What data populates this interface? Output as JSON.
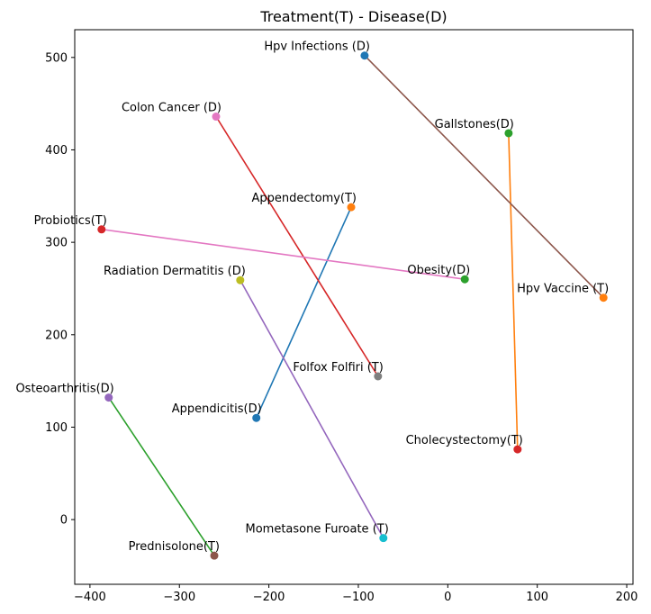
{
  "chart_data": {
    "type": "scatter",
    "title": "Treatment(T) - Disease(D)",
    "xlabel": "",
    "ylabel": "",
    "xlim": [
      -417,
      207
    ],
    "ylim": [
      -70,
      530
    ],
    "xticks": [
      -400,
      -300,
      -200,
      -100,
      0,
      100,
      200
    ],
    "yticks": [
      0,
      100,
      200,
      300,
      400,
      500
    ],
    "grid": false,
    "pairs": [
      {
        "color": "#1f77b4",
        "from": {
          "label": "Appendicitis(D)",
          "x": -214,
          "y": 110,
          "color": "#1f77b4",
          "align": "right"
        },
        "to": {
          "label": "Appendectomy(T)",
          "x": -108,
          "y": 338,
          "color": "#ff7f0e",
          "align": "right"
        }
      },
      {
        "color": "#ff7f0e",
        "from": {
          "label": "Gallstones(D)",
          "x": 68,
          "y": 418,
          "color": "#2ca02c",
          "align": "right"
        },
        "to": {
          "label": "Cholecystectomy(T)",
          "x": 78,
          "y": 76,
          "color": "#d62728",
          "align": "right"
        }
      },
      {
        "color": "#2ca02c",
        "from": {
          "label": "Osteoarthritis(D)",
          "x": -379,
          "y": 132,
          "color": "#9467bd",
          "align": "right"
        },
        "to": {
          "label": "Prednisolone(T)",
          "x": -261,
          "y": -39,
          "color": "#8c564b",
          "align": "right"
        }
      },
      {
        "color": "#d62728",
        "from": {
          "label": "Colon Cancer (D)",
          "x": -259,
          "y": 436,
          "color": "#e377c2",
          "align": "right"
        },
        "to": {
          "label": "Folfox Folfiri (T)",
          "x": -78,
          "y": 155,
          "color": "#7f7f7f",
          "align": "right"
        }
      },
      {
        "color": "#9467bd",
        "from": {
          "label": "Radiation Dermatitis (D)",
          "x": -232,
          "y": 259,
          "color": "#bcbd22",
          "align": "right"
        },
        "to": {
          "label": "Mometasone Furoate (T)",
          "x": -72,
          "y": -20,
          "color": "#17becf",
          "align": "right"
        }
      },
      {
        "color": "#8c564b",
        "from": {
          "label": "Hpv Infections (D)",
          "x": -93,
          "y": 502,
          "color": "#1f77b4",
          "align": "right"
        },
        "to": {
          "label": "Hpv Vaccine (T)",
          "x": 174,
          "y": 240,
          "color": "#ff7f0e",
          "align": "right"
        }
      },
      {
        "color": "#e377c2",
        "from": {
          "label": "Obesity(D)",
          "x": 19,
          "y": 260,
          "color": "#2ca02c",
          "align": "right"
        },
        "to": {
          "label": "Probiotics(T)",
          "x": -387,
          "y": 314,
          "color": "#d62728",
          "align": "right"
        }
      }
    ]
  }
}
